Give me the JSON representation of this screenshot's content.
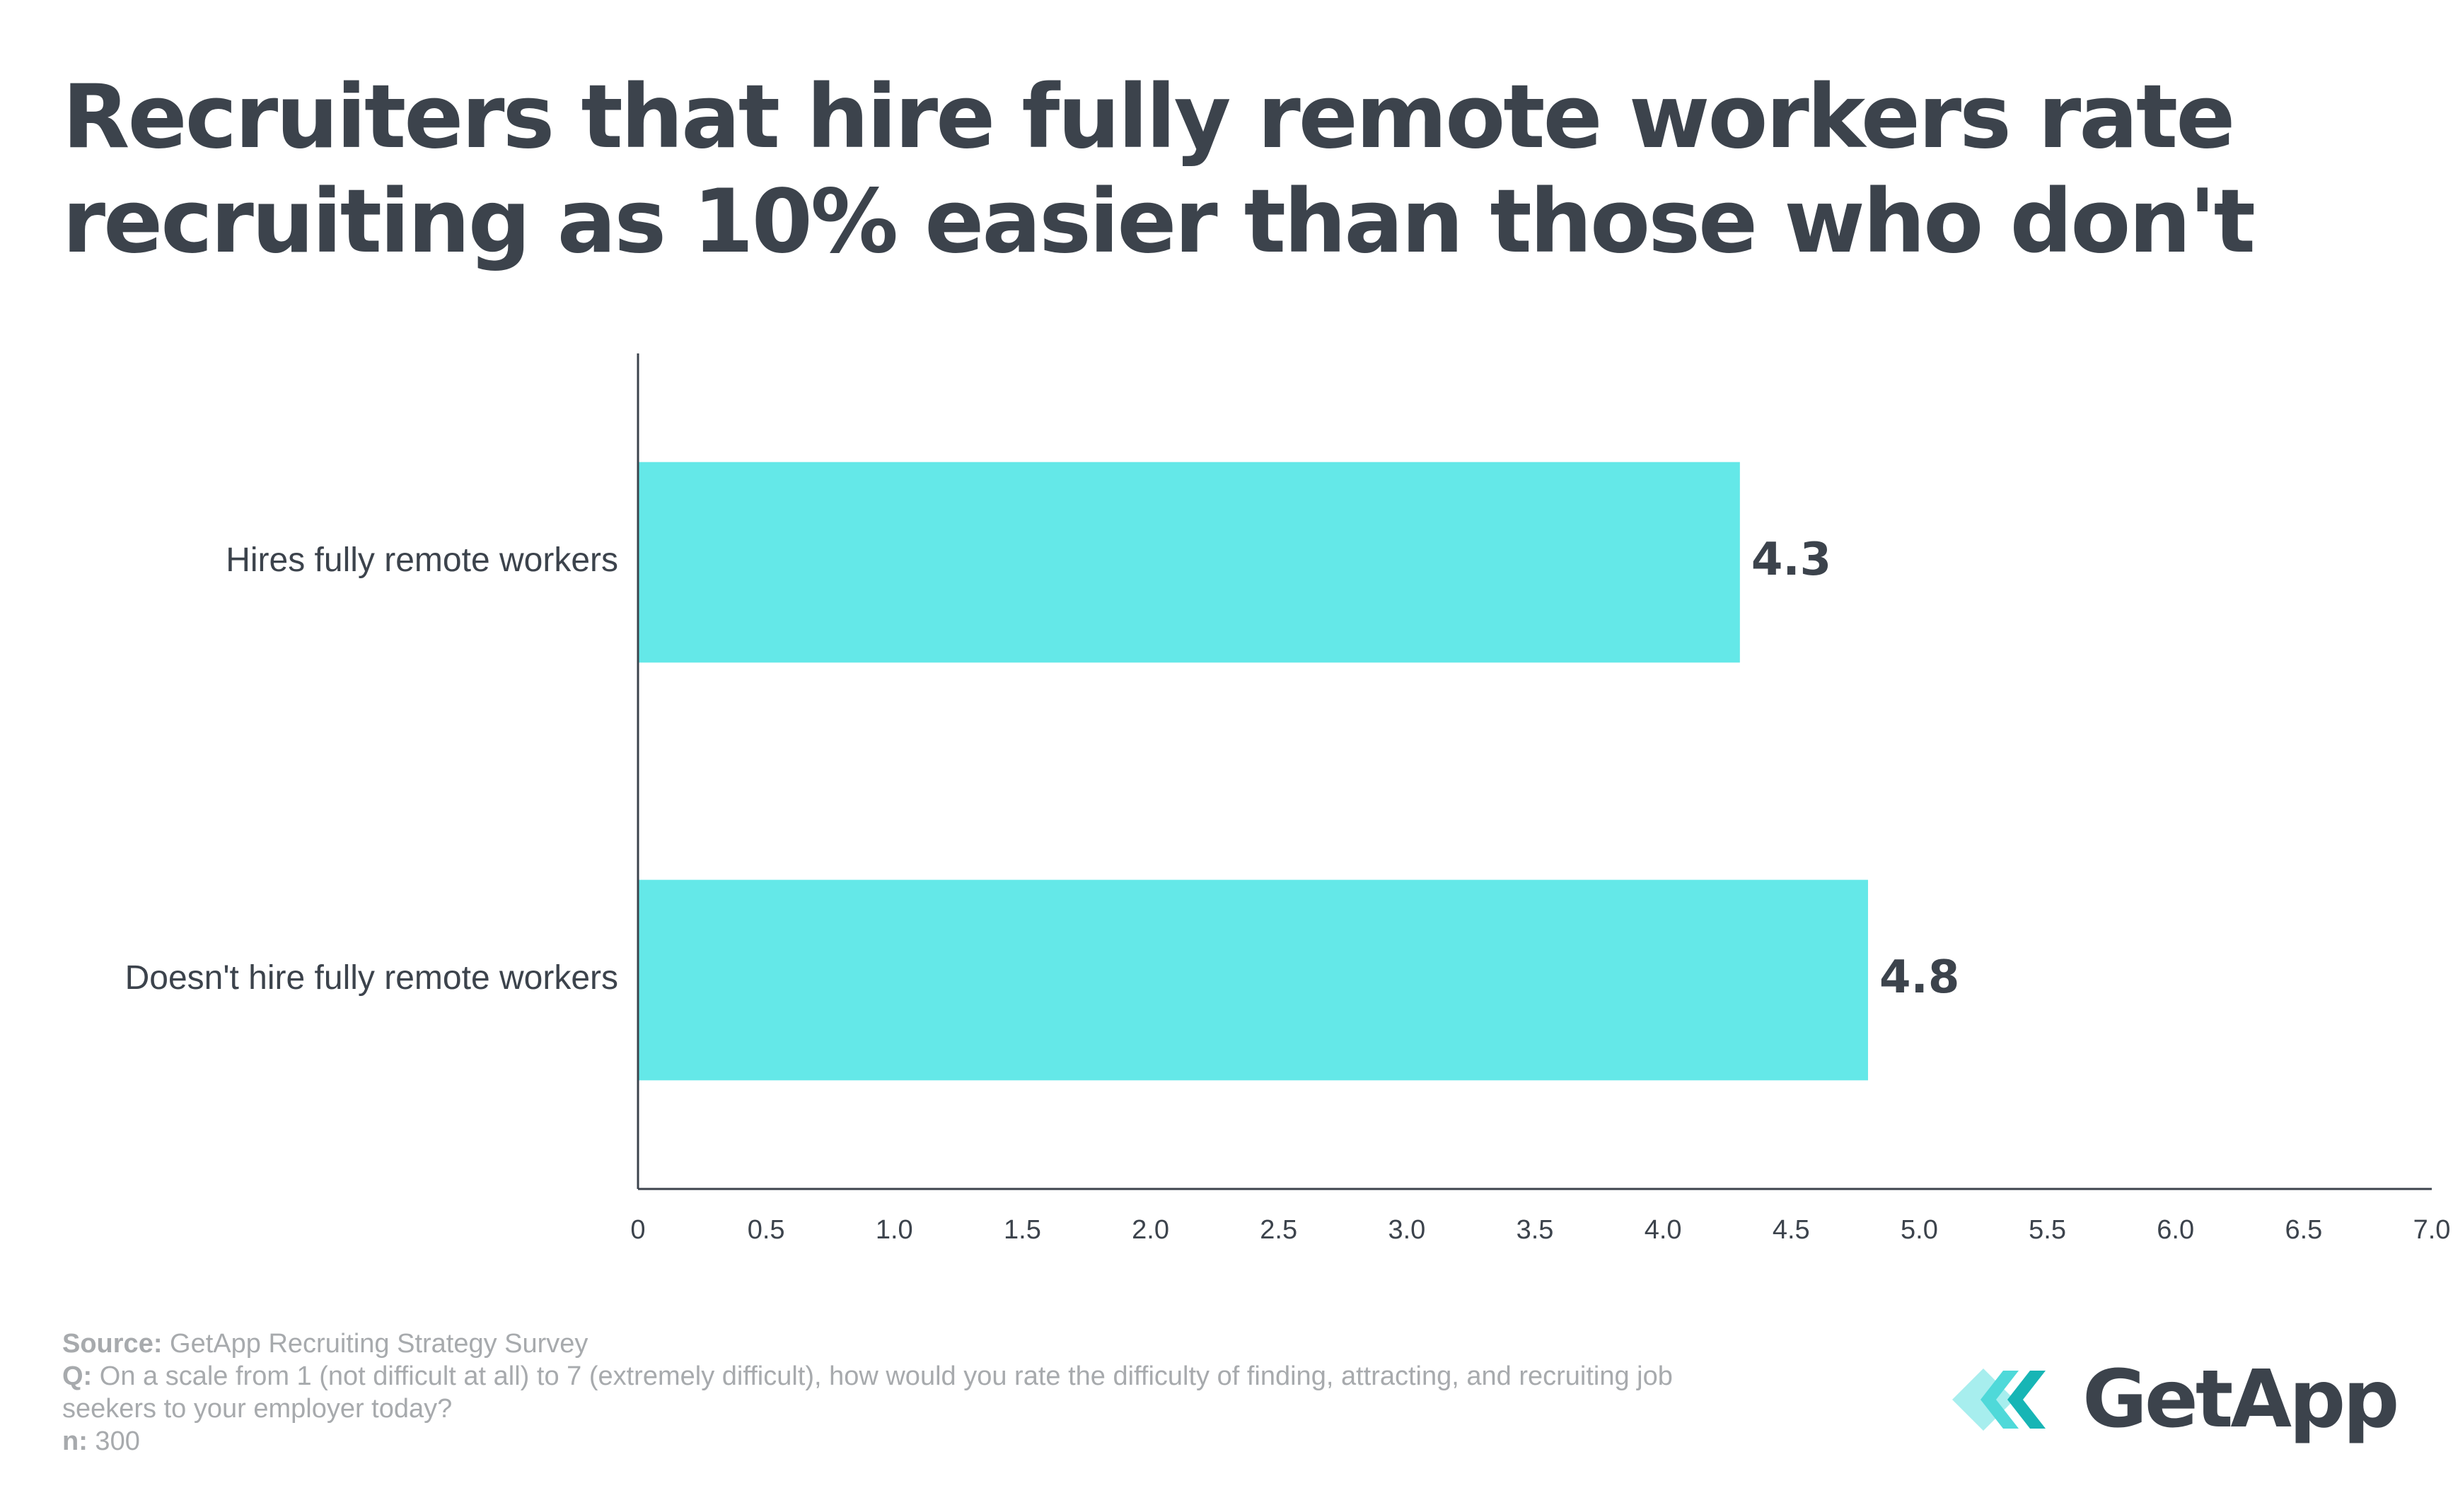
{
  "title": "Recruiters that hire fully remote workers rate recruiting as 10% easier than those who don't",
  "chart_data": {
    "type": "bar",
    "orientation": "horizontal",
    "categories": [
      "Hires fully remote workers",
      "Doesn't hire fully remote workers"
    ],
    "values": [
      4.3,
      4.8
    ],
    "data_labels": [
      "4.3",
      "4.8"
    ],
    "xlim": [
      0,
      7.0
    ],
    "x_ticks": [
      "0",
      "0.5",
      "1.0",
      "1.5",
      "2.0",
      "2.5",
      "3.0",
      "3.5",
      "4.0",
      "4.5",
      "5.0",
      "5.5",
      "6.0",
      "6.5",
      "7.0"
    ],
    "xlabel": "",
    "ylabel": "",
    "grid": false,
    "legend": "none",
    "bar_color": "#64e8e8"
  },
  "footer": {
    "source_label": "Source:",
    "source_text": " GetApp Recruiting Strategy Survey",
    "q_label": "Q:",
    "q_text": " On a scale from 1 (not difficult at all) to 7 (extremely difficult), how would you rate the difficulty of finding, attracting, and recruiting job seekers to your employer today?",
    "n_label": "n:",
    "n_text": " 300"
  },
  "logo": {
    "text": "GetApp",
    "icon": "getapp-chevrons-icon",
    "colors": [
      "#a7eeee",
      "#4fd9d9",
      "#17b5b5"
    ]
  }
}
